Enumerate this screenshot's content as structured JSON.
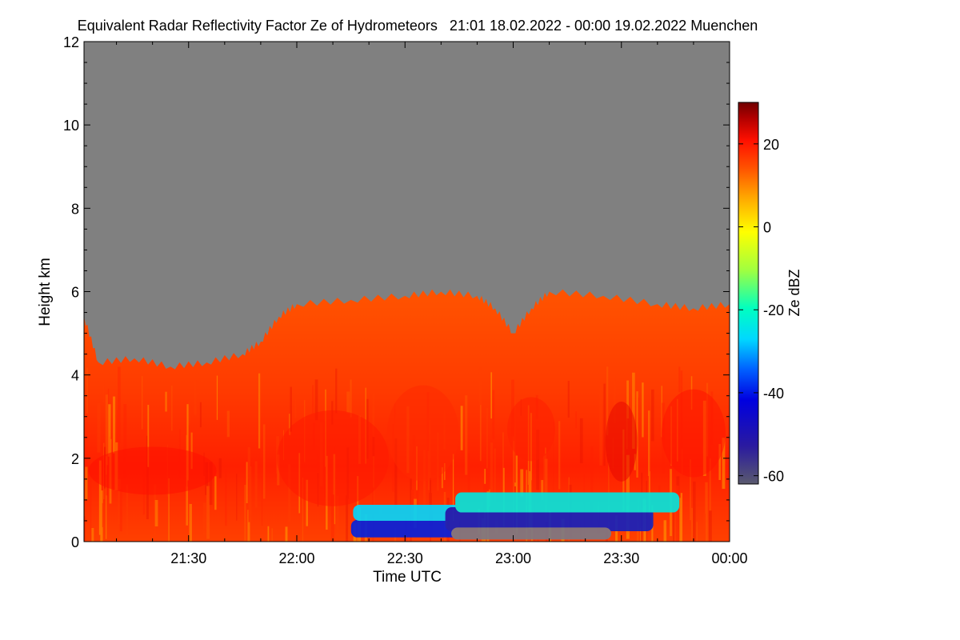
{
  "chart_data": {
    "type": "heatmap",
    "title": "Equivalent Radar Reflectivity Factor Ze of Hydrometeors   21:01 18.02.2022 - 00:00 19.02.2022 Muenchen",
    "xlabel": "Time UTC",
    "ylabel": "Height km",
    "xlim": [
      "21:01",
      "00:00"
    ],
    "ylim": [
      0,
      12
    ],
    "x_ticks": [
      "21:30",
      "22:00",
      "22:30",
      "23:00",
      "23:30",
      "00:00"
    ],
    "y_ticks": [
      0,
      2,
      4,
      6,
      8,
      10,
      12
    ],
    "colorbar": {
      "label": "Ze dBZ",
      "range": [
        -62,
        30
      ],
      "ticks": [
        20,
        0,
        -20,
        -40,
        -60
      ],
      "colors": [
        "#5a5a6e",
        "#0000c8",
        "#0050ff",
        "#00c8ff",
        "#00ffd0",
        "#a0ff50",
        "#ffff00",
        "#ffb400",
        "#ff6000",
        "#ff1000",
        "#c80000",
        "#7a0000"
      ]
    },
    "background_color": "#808080",
    "echo_top_km": [
      [
        "21:01",
        5.4
      ],
      [
        "21:05",
        4.3
      ],
      [
        "21:15",
        4.4
      ],
      [
        "21:25",
        4.2
      ],
      [
        "21:35",
        4.3
      ],
      [
        "21:45",
        4.5
      ],
      [
        "21:50",
        4.8
      ],
      [
        "21:55",
        5.4
      ],
      [
        "22:00",
        5.7
      ],
      [
        "22:15",
        5.8
      ],
      [
        "22:30",
        5.9
      ],
      [
        "22:40",
        6.0
      ],
      [
        "22:50",
        5.9
      ],
      [
        "22:55",
        5.6
      ],
      [
        "23:00",
        5.0
      ],
      [
        "23:05",
        5.6
      ],
      [
        "23:10",
        6.0
      ],
      [
        "23:25",
        5.9
      ],
      [
        "23:40",
        5.7
      ],
      [
        "23:50",
        5.6
      ],
      [
        "00:00",
        5.7
      ]
    ]
  }
}
